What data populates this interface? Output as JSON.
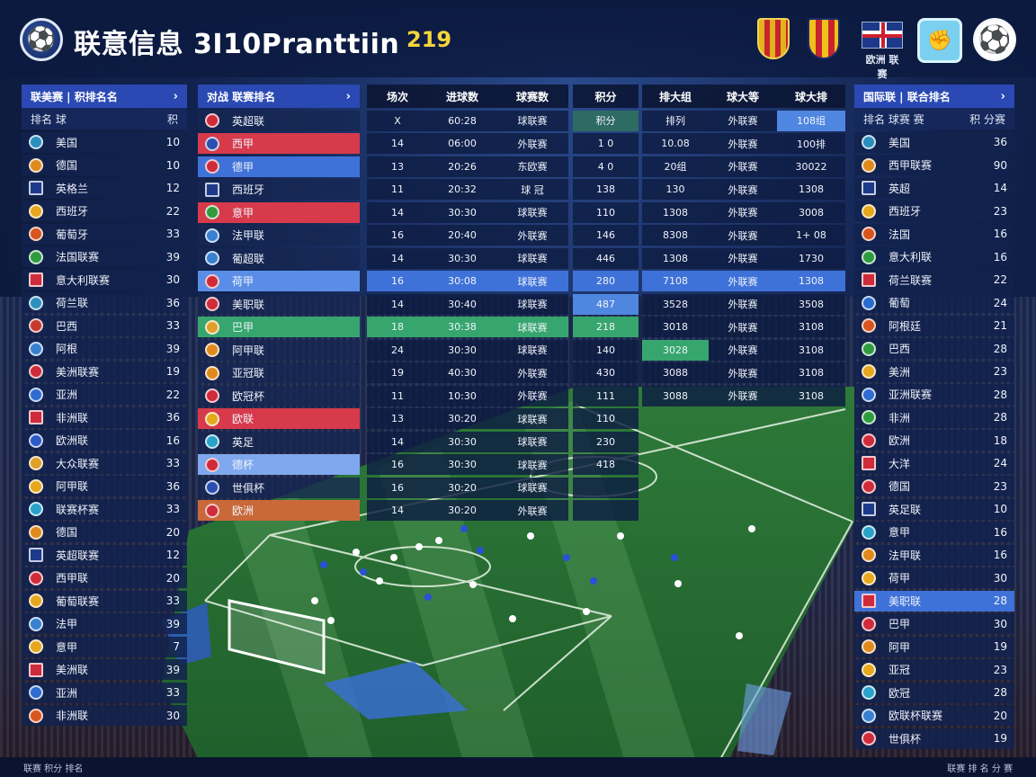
{
  "header": {
    "title": "联意信息 3I10Pranttiin",
    "count": "219",
    "flag_label": "欧洲 联赛"
  },
  "left_panel": {
    "title": "联美赛 | 积排名名",
    "chevron": "›",
    "col_name": "排名 球",
    "col_val": "积",
    "rows": [
      {
        "name": "美国",
        "val": "10",
        "icon": "#2a8fbf"
      },
      {
        "name": "德国",
        "val": "10",
        "icon": "#e08a1e"
      },
      {
        "name": "英格兰",
        "val": "12",
        "icon": "#1d3a8a",
        "flag": true
      },
      {
        "name": "西班牙",
        "val": "22",
        "icon": "#e6a81f"
      },
      {
        "name": "葡萄牙",
        "val": "33",
        "icon": "#d8551f"
      },
      {
        "name": "法国联赛",
        "val": "39",
        "icon": "#2f9b3f"
      },
      {
        "name": "意大利联赛",
        "val": "30",
        "icon": "#cf2b3a",
        "flag": true
      },
      {
        "name": "荷兰联",
        "val": "36",
        "icon": "#2f8fbf"
      },
      {
        "name": "巴西",
        "val": "33",
        "icon": "#c53a2e"
      },
      {
        "name": "阿根",
        "val": "39",
        "icon": "#3a80d0"
      },
      {
        "name": "美洲联赛",
        "val": "19",
        "icon": "#cf2b3a"
      },
      {
        "name": "亚洲",
        "val": "22",
        "icon": "#2f6bd0"
      },
      {
        "name": "非洲联",
        "val": "36",
        "icon": "#cf2b3a",
        "flag": true
      },
      {
        "name": "欧洲联",
        "val": "16",
        "icon": "#2c5ac7"
      },
      {
        "name": "大众联赛",
        "val": "33",
        "icon": "#e0a02a"
      },
      {
        "name": "阿甲联",
        "val": "36",
        "icon": "#e6a81f"
      },
      {
        "name": "联赛杯赛",
        "val": "33",
        "icon": "#2aa2c9"
      },
      {
        "name": "德国",
        "val": "20",
        "icon": "#e08a1e"
      },
      {
        "name": "英超联赛",
        "val": "12",
        "icon": "#1d3a8a",
        "flag": true
      },
      {
        "name": "西甲联",
        "val": "20",
        "icon": "#cf2b3a"
      },
      {
        "name": "葡萄联赛",
        "val": "33",
        "icon": "#e6a81f"
      },
      {
        "name": "法甲",
        "val": "39",
        "icon": "#3a80d0"
      },
      {
        "name": "意甲",
        "val": "7",
        "icon": "#e6a81f"
      },
      {
        "name": "美洲联",
        "val": "39",
        "icon": "#cf2b3a",
        "flag": true
      },
      {
        "name": "亚洲",
        "val": "33",
        "icon": "#2f6bd0"
      },
      {
        "name": "非洲联",
        "val": "30",
        "icon": "#d8551f"
      }
    ]
  },
  "mid_panel": {
    "title": "对战 联赛排名",
    "chevron": "›",
    "rows": [
      {
        "name": "英超联",
        "icon": "#cf2b3a",
        "hl": ""
      },
      {
        "name": "西甲",
        "icon": "#2a4fb0",
        "hl": "hl-red"
      },
      {
        "name": "德甲",
        "icon": "#cf2b3a",
        "hl": "hl-blue"
      },
      {
        "name": "西班牙",
        "icon": "#1d3a8a",
        "hl": "",
        "flag": true
      },
      {
        "name": "意甲",
        "icon": "#2f9b3f",
        "hl": "hl-red"
      },
      {
        "name": "法甲联",
        "icon": "#3a80d0",
        "hl": ""
      },
      {
        "name": "葡超联",
        "icon": "#3a80d0",
        "hl": ""
      },
      {
        "name": "荷甲",
        "icon": "#cf2b3a",
        "hl": "hl-sky"
      },
      {
        "name": "美职联",
        "icon": "#cf2b3a",
        "hl": ""
      },
      {
        "name": "巴甲",
        "icon": "#e0a02a",
        "hl": "hl-green"
      },
      {
        "name": "阿甲联",
        "icon": "#e08a1e",
        "hl": ""
      },
      {
        "name": "亚冠联",
        "icon": "#e08a1e",
        "hl": ""
      },
      {
        "name": "欧冠杯",
        "icon": "#cf2b3a",
        "hl": ""
      },
      {
        "name": "欧联",
        "icon": "#e6a81f",
        "hl": "hl-red"
      },
      {
        "name": "英足",
        "icon": "#2aa2c9",
        "hl": ""
      },
      {
        "name": "德杯",
        "icon": "#cf2b3a",
        "hl": "hl-lightblue"
      },
      {
        "name": "世俱杯",
        "icon": "#2a4fb0",
        "hl": ""
      },
      {
        "name": "欧洲",
        "icon": "#cf2b3a",
        "hl": "hl-orange"
      }
    ]
  },
  "grid1": {
    "headers": [
      "场次",
      "进球数",
      "球赛数"
    ],
    "rows": [
      [
        "X",
        "60:28",
        "球联赛"
      ],
      [
        "14",
        "06:00",
        "外联赛"
      ],
      [
        "13",
        "20:26",
        "东欧赛"
      ],
      [
        "11",
        "20:32",
        "球 冠"
      ],
      [
        "14",
        "30:30",
        "球联赛"
      ],
      [
        "16",
        "20:40",
        "外联赛"
      ],
      [
        "14",
        "30:30",
        "球联赛"
      ],
      [
        "16",
        "30:08",
        "球联赛"
      ],
      [
        "14",
        "30:40",
        "球联赛"
      ],
      [
        "18",
        "30:38",
        "球联赛"
      ],
      [
        "24",
        "30:30",
        "球联赛"
      ],
      [
        "19",
        "40:30",
        "外联赛"
      ],
      [
        "11",
        "10:30",
        "外联赛"
      ],
      [
        "13",
        "30:20",
        "球联赛"
      ],
      [
        "14",
        "30:30",
        "球联赛"
      ],
      [
        "16",
        "30:30",
        "球联赛"
      ],
      [
        "16",
        "30:20",
        "球联赛"
      ],
      [
        "14",
        "30:20",
        "外联赛"
      ]
    ],
    "highlights": {
      "7": "c-blue",
      "9": "c-green"
    }
  },
  "grid2": {
    "header": "积分",
    "rows": [
      "积分",
      "1 0",
      "4 0",
      "138",
      "110",
      "146",
      "446",
      "280",
      "487",
      "218",
      "140",
      "430",
      "111",
      "110",
      "230",
      "418",
      "",
      ""
    ],
    "highlights": {
      "0": "c-teal",
      "7": "c-blue",
      "8": "c-sky",
      "9": "c-green"
    }
  },
  "grid3": {
    "headers": [
      "排大组",
      "球大等",
      "球大排"
    ],
    "rows": [
      [
        "排列",
        "外联赛",
        "108组"
      ],
      [
        "10.08",
        "外联赛",
        "100排"
      ],
      [
        "20组",
        "外联赛",
        "30022"
      ],
      [
        "130",
        "外联赛",
        "1308"
      ],
      [
        "1308",
        "外联赛",
        "3008"
      ],
      [
        "8308",
        "外联赛",
        "1+ 08"
      ],
      [
        "1308",
        "外联赛",
        "1730"
      ],
      [
        "7108",
        "外联赛",
        "1308"
      ],
      [
        "3528",
        "外联赛",
        "3508"
      ],
      [
        "3018",
        "外联赛",
        "3108"
      ],
      [
        "3028",
        "外联赛",
        "3108"
      ],
      [
        "3088",
        "外联赛",
        "3108"
      ],
      [
        "3088",
        "外联赛",
        "3108"
      ]
    ],
    "highlights": {
      "0": {
        "2": "c-sky"
      },
      "7": {
        "0": "c-blue",
        "1": "c-blue",
        "2": "c-blue"
      },
      "10": {
        "0": "c-green"
      }
    }
  },
  "right_panel": {
    "title": "国际联 | 联合排名",
    "chevron": "›",
    "col_name": "排名 球赛 赛",
    "col_val": "积 分赛",
    "rows": [
      {
        "name": "美国",
        "val": "36",
        "icon": "#2a8fbf"
      },
      {
        "name": "西甲联赛",
        "val": "90",
        "icon": "#e08a1e"
      },
      {
        "name": "英超",
        "val": "14",
        "icon": "#1d3a8a",
        "flag": true
      },
      {
        "name": "西班牙",
        "val": "23",
        "icon": "#e6a81f"
      },
      {
        "name": "法国",
        "val": "16",
        "icon": "#d8551f"
      },
      {
        "name": "意大利联",
        "val": "16",
        "icon": "#2f9b3f"
      },
      {
        "name": "荷兰联赛",
        "val": "22",
        "icon": "#cf2b3a",
        "flag": true
      },
      {
        "name": "葡萄",
        "val": "24",
        "icon": "#2a6bd0"
      },
      {
        "name": "阿根廷",
        "val": "21",
        "icon": "#d8551f"
      },
      {
        "name": "巴西",
        "val": "28",
        "icon": "#2f9b3f"
      },
      {
        "name": "美洲",
        "val": "23",
        "icon": "#e6a81f"
      },
      {
        "name": "亚洲联赛",
        "val": "28",
        "icon": "#2f6bd0"
      },
      {
        "name": "非洲",
        "val": "28",
        "icon": "#2f9b3f"
      },
      {
        "name": "欧洲",
        "val": "18",
        "icon": "#cf2b3a"
      },
      {
        "name": "大洋",
        "val": "24",
        "icon": "#cf2b3a",
        "flag": true
      },
      {
        "name": "德国",
        "val": "23",
        "icon": "#cf2b3a"
      },
      {
        "name": "英足联",
        "val": "10",
        "icon": "#1d3a8a",
        "flag": true
      },
      {
        "name": "意甲",
        "val": "16",
        "icon": "#2aa2c9"
      },
      {
        "name": "法甲联",
        "val": "16",
        "icon": "#e08a1e"
      },
      {
        "name": "荷甲",
        "val": "30",
        "icon": "#e6a81f"
      },
      {
        "name": "美职联",
        "val": "28",
        "icon": "#cf2b3a",
        "hl": "hl-blue",
        "flag": true
      },
      {
        "name": "巴甲",
        "val": "30",
        "icon": "#cf2b3a"
      },
      {
        "name": "阿甲",
        "val": "19",
        "icon": "#e08a1e"
      },
      {
        "name": "亚冠",
        "val": "23",
        "icon": "#e6a81f"
      },
      {
        "name": "欧冠",
        "val": "28",
        "icon": "#2aa2c9"
      },
      {
        "name": "欧联杯联赛",
        "val": "20",
        "icon": "#3a80d0"
      },
      {
        "name": "世俱杯",
        "val": "19",
        "icon": "#cf2b3a"
      }
    ]
  },
  "footer": {
    "left": "联赛 积分 排名",
    "right": "联赛 排 名 分 赛"
  }
}
